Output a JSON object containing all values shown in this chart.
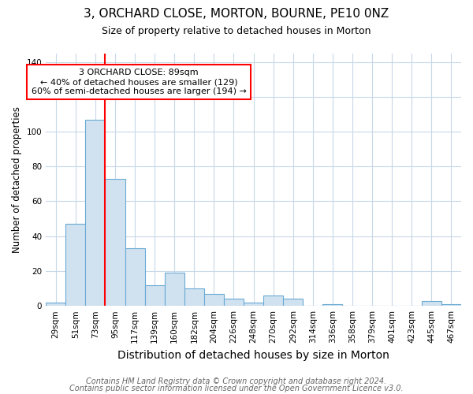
{
  "title": "3, ORCHARD CLOSE, MORTON, BOURNE, PE10 0NZ",
  "subtitle": "Size of property relative to detached houses in Morton",
  "xlabel": "Distribution of detached houses by size in Morton",
  "ylabel": "Number of detached properties",
  "categories": [
    "29sqm",
    "51sqm",
    "73sqm",
    "95sqm",
    "117sqm",
    "139sqm",
    "160sqm",
    "182sqm",
    "204sqm",
    "226sqm",
    "248sqm",
    "270sqm",
    "292sqm",
    "314sqm",
    "336sqm",
    "358sqm",
    "379sqm",
    "401sqm",
    "423sqm",
    "445sqm",
    "467sqm"
  ],
  "values": [
    2,
    47,
    107,
    73,
    33,
    12,
    19,
    10,
    7,
    4,
    2,
    6,
    4,
    0,
    1,
    0,
    0,
    0,
    0,
    3,
    1
  ],
  "bar_color": "#d0e2f0",
  "bar_edge_color": "#6aaad4",
  "red_line_x": 3.0,
  "annotation_title": "3 ORCHARD CLOSE: 89sqm",
  "annotation_line1": "← 40% of detached houses are smaller (129)",
  "annotation_line2": "60% of semi-detached houses are larger (194) →",
  "ylim": [
    0,
    145
  ],
  "yticks": [
    0,
    20,
    40,
    60,
    80,
    100,
    120,
    140
  ],
  "footer1": "Contains HM Land Registry data © Crown copyright and database right 2024.",
  "footer2": "Contains public sector information licensed under the Open Government Licence v3.0.",
  "plot_background": "#ffffff",
  "grid_color": "#c8d8e8",
  "title_fontsize": 11,
  "subtitle_fontsize": 9,
  "xlabel_fontsize": 10,
  "ylabel_fontsize": 8.5,
  "tick_fontsize": 7.5,
  "annotation_fontsize": 8,
  "footer_fontsize": 7
}
